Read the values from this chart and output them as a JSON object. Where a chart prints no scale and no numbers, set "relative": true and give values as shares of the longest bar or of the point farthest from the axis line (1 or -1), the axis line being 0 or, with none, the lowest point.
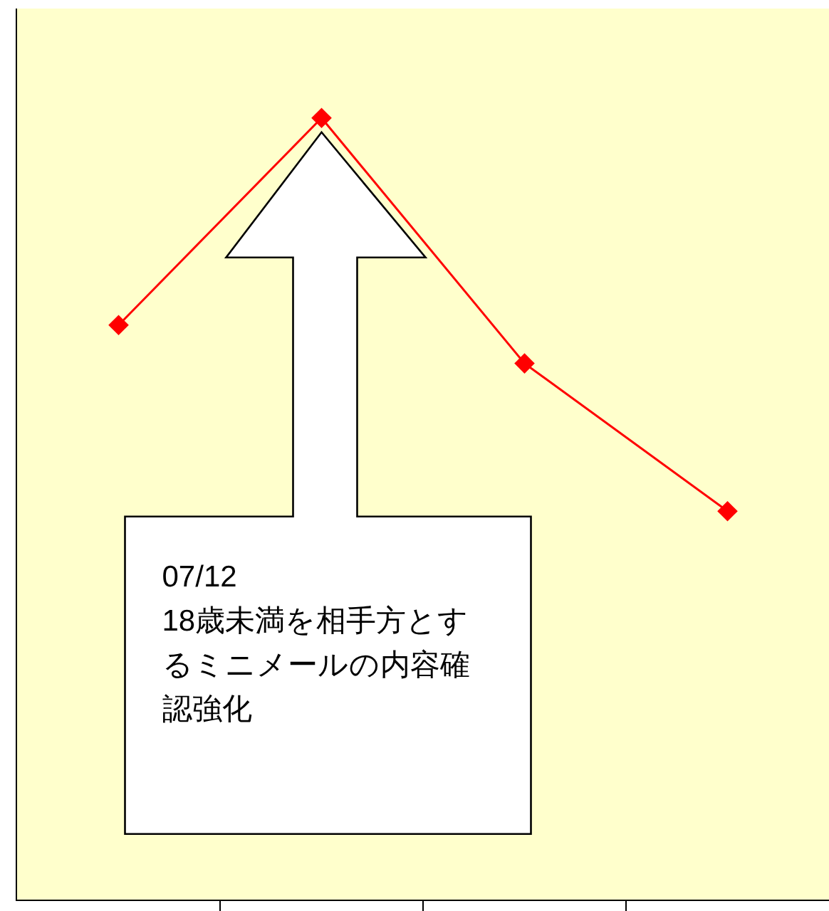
{
  "chart_data": {
    "type": "line",
    "relative": true,
    "categories": [
      null,
      null,
      null,
      null
    ],
    "series": [
      {
        "color": "#ff0000",
        "values": [
          0.735,
          1,
          0.686,
          0.497
        ]
      }
    ],
    "marker": "diamond",
    "line_style": "solid",
    "grid": false,
    "legend": false,
    "annotations": [
      "07/12",
      "18歳未満を相手方とするミニメールの内容確認強化"
    ]
  }
}
